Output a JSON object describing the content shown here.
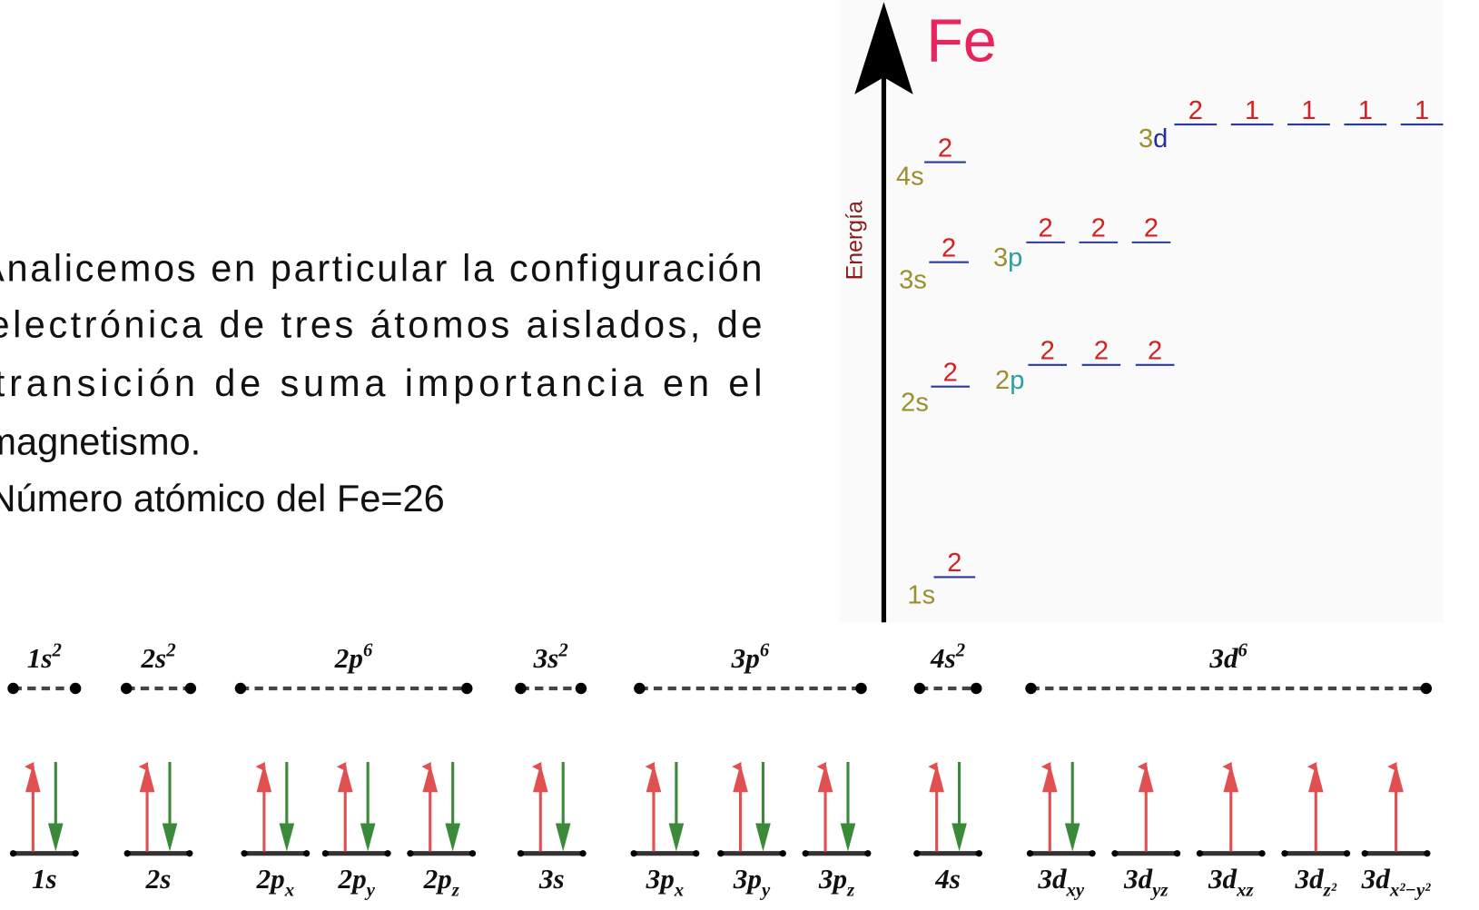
{
  "text": {
    "lines": [
      "Analicemos en particular la configuración",
      "electrónica de tres átomos aislados,  de",
      "transición de suma importancia en el",
      "magnetismo.",
      "Número atómico del Fe=26"
    ]
  },
  "energy_diagram": {
    "element": "Fe",
    "axis_label": "Energía",
    "levels": [
      {
        "number": "1",
        "letter": "s",
        "letter_color": "#9b8f2e",
        "occupancy": [
          2
        ]
      },
      {
        "number": "2",
        "letter": "s",
        "letter_color": "#9b8f2e",
        "occupancy": [
          2
        ]
      },
      {
        "number": "2",
        "letter": "p",
        "letter_color": "#2aa0a0",
        "occupancy": [
          2,
          2,
          2
        ]
      },
      {
        "number": "3",
        "letter": "s",
        "letter_color": "#9b8f2e",
        "occupancy": [
          2
        ]
      },
      {
        "number": "3",
        "letter": "p",
        "letter_color": "#2aa0a0",
        "occupancy": [
          2,
          2,
          2
        ]
      },
      {
        "number": "4",
        "letter": "s",
        "letter_color": "#9b8f2e",
        "occupancy": [
          2
        ]
      },
      {
        "number": "3",
        "letter": "d",
        "letter_color": "#22309a",
        "occupancy": [
          2,
          1,
          1,
          1,
          1
        ]
      }
    ]
  },
  "orbital_groups": [
    {
      "base": "1s",
      "sup": "2",
      "orbitals": [
        {
          "base": "1s",
          "electrons": 2
        }
      ]
    },
    {
      "base": "2s",
      "sup": "2",
      "orbitals": [
        {
          "base": "2s",
          "electrons": 2
        }
      ]
    },
    {
      "base": "2p",
      "sup": "6",
      "orbitals": [
        {
          "base": "2p",
          "sub": "x",
          "electrons": 2
        },
        {
          "base": "2p",
          "sub": "y",
          "electrons": 2
        },
        {
          "base": "2p",
          "sub": "z",
          "electrons": 2
        }
      ]
    },
    {
      "base": "3s",
      "sup": "2",
      "orbitals": [
        {
          "base": "3s",
          "electrons": 2
        }
      ]
    },
    {
      "base": "3p",
      "sup": "6",
      "orbitals": [
        {
          "base": "3p",
          "sub": "x",
          "electrons": 2
        },
        {
          "base": "3p",
          "sub": "y",
          "electrons": 2
        },
        {
          "base": "3p",
          "sub": "z",
          "electrons": 2
        }
      ]
    },
    {
      "base": "4s",
      "sup": "2",
      "orbitals": [
        {
          "base": "4s",
          "electrons": 2
        }
      ]
    },
    {
      "base": "3d",
      "sup": "6",
      "orbitals": [
        {
          "base": "3d",
          "sub": "xy",
          "electrons": 2
        },
        {
          "base": "3d",
          "sub": "yz",
          "electrons": 1
        },
        {
          "base": "3d",
          "sub": "xz",
          "electrons": 1
        },
        {
          "base": "3d",
          "sub": "z²",
          "electrons": 1
        },
        {
          "base": "3d",
          "sub": "x²−y²",
          "electrons": 1
        }
      ]
    }
  ]
}
